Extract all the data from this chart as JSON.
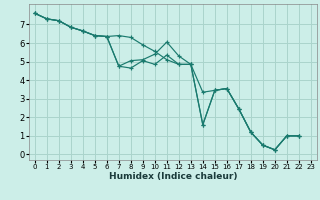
{
  "xlabel": "Humidex (Indice chaleur)",
  "bg_color": "#cceee8",
  "grid_color": "#aad4cc",
  "line_color": "#1a7a6e",
  "xlim": [
    -0.5,
    23.5
  ],
  "ylim": [
    -0.3,
    8.1
  ],
  "xticks": [
    0,
    1,
    2,
    3,
    4,
    5,
    6,
    7,
    8,
    9,
    10,
    11,
    12,
    13,
    14,
    15,
    16,
    17,
    18,
    19,
    20,
    21,
    22,
    23
  ],
  "yticks": [
    0,
    1,
    2,
    3,
    4,
    5,
    6,
    7
  ],
  "x_values": [
    0,
    1,
    2,
    3,
    4,
    5,
    6,
    7,
    8,
    9,
    10,
    11,
    12,
    13,
    14,
    15,
    16,
    17,
    18,
    19,
    20,
    21,
    22
  ],
  "series": [
    [
      7.6,
      7.3,
      7.2,
      6.85,
      6.65,
      6.4,
      6.35,
      4.75,
      4.65,
      5.05,
      4.85,
      5.35,
      4.85,
      4.85,
      1.6,
      3.45,
      3.55,
      2.45,
      1.2,
      0.5,
      0.25,
      1.0,
      1.0
    ],
    [
      7.6,
      7.3,
      7.2,
      6.85,
      6.65,
      6.4,
      6.35,
      4.75,
      5.05,
      5.1,
      5.4,
      6.05,
      5.3,
      4.85,
      1.6,
      3.45,
      3.55,
      2.45,
      1.2,
      0.5,
      0.25,
      1.0,
      1.0
    ],
    [
      7.6,
      7.3,
      7.2,
      6.85,
      6.65,
      6.4,
      6.35,
      6.4,
      6.3,
      5.9,
      5.55,
      5.1,
      4.85,
      4.85,
      3.35,
      3.45,
      3.55,
      2.45,
      1.2,
      0.5,
      0.25,
      1.0,
      1.0
    ]
  ]
}
